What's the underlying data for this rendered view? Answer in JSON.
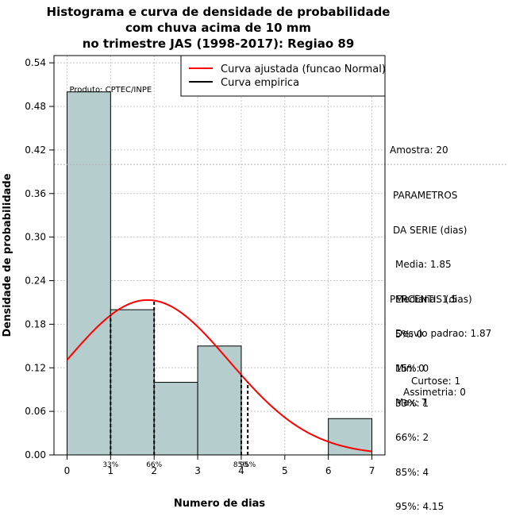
{
  "chart_data": {
    "type": "histogram",
    "title": [
      "Histograma e curva de densidade de probabilidade",
      "com chuva acima de 10 mm",
      "no trimestre JAS (1998-2017): Regiao 89"
    ],
    "xlabel": "Numero de dias",
    "ylabel": "Densidade de probabilidade",
    "xlim": [
      -0.3,
      7.3
    ],
    "ylim": [
      0,
      0.55
    ],
    "x_ticks": [
      0,
      1,
      2,
      3,
      4,
      5,
      6,
      7
    ],
    "y_ticks": [
      0.0,
      0.06,
      0.12,
      0.18,
      0.24,
      0.3,
      0.36,
      0.42,
      0.48,
      0.54
    ],
    "y_tick_labels": [
      "0.00",
      "0.06",
      "0.12",
      "0.18",
      "0.24",
      "0.30",
      "0.36",
      "0.42",
      "0.48",
      "0.54"
    ],
    "bins": [
      {
        "from": 0,
        "to": 1,
        "density": 0.5
      },
      {
        "from": 1,
        "to": 2,
        "density": 0.2
      },
      {
        "from": 2,
        "to": 3,
        "density": 0.1
      },
      {
        "from": 3,
        "to": 4,
        "density": 0.15
      },
      {
        "from": 4,
        "to": 5,
        "density": 0.0
      },
      {
        "from": 5,
        "to": 6,
        "density": 0.0
      },
      {
        "from": 6,
        "to": 7,
        "density": 0.05
      }
    ],
    "bar_color": "#b5cdcd",
    "normal_curve": {
      "mean": 1.85,
      "sd": 1.87,
      "color": "#ff0000",
      "x_range": [
        0,
        7
      ]
    },
    "percentile_lines": [
      {
        "label": "33%",
        "x": 1
      },
      {
        "label": "66%",
        "x": 2
      },
      {
        "label": "85%",
        "x": 4
      },
      {
        "label": "95%",
        "x": 4.15
      }
    ],
    "reference_line_y": 0.4,
    "grid": true,
    "legend": {
      "position": "top-right",
      "items": [
        {
          "label": "Curva ajustada (funcao Normal)",
          "color": "#ff0000"
        },
        {
          "label": "Curva empirica",
          "color": "#000000"
        }
      ]
    },
    "product_label": "Produto: CPTEC/INPE"
  },
  "stats": {
    "amostra": "Amostra: 20",
    "parametros": [
      "PARAMETROS",
      "DA SERIE (dias)",
      "Media: 1.85",
      "Mediana: 1.5",
      "Desvio padrao: 1.87",
      "Min: 0",
      "Max: 7"
    ],
    "percentis": [
      "PERCENTIS (dias)",
      "5%: 0",
      "15%: 0",
      "33%: 1",
      "66%: 2",
      "85%: 4",
      "95%: 4.15"
    ],
    "shape": [
      "Curtose: 1",
      "Assimetria: 0"
    ]
  }
}
